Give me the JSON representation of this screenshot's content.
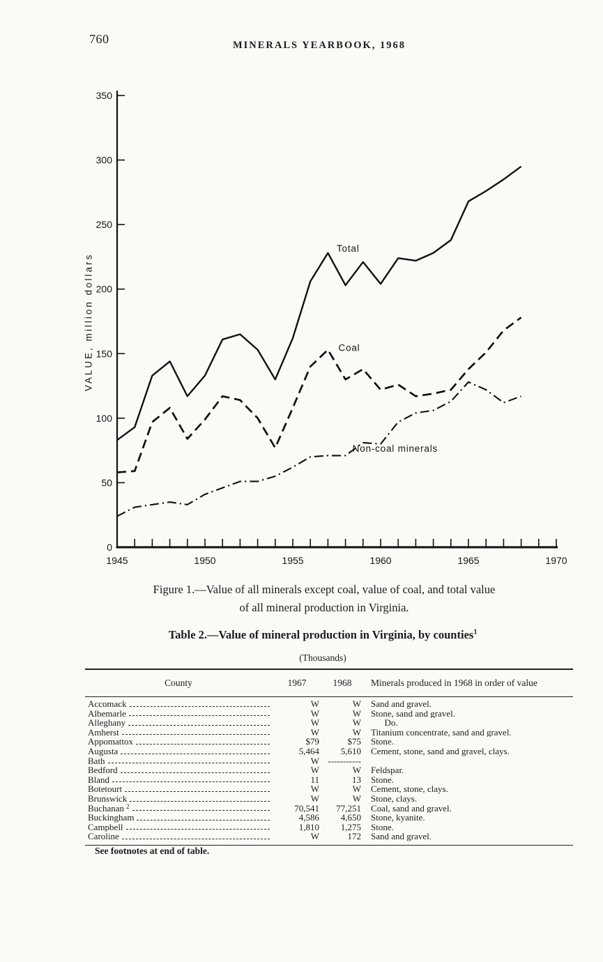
{
  "header": {
    "page_number": "760",
    "title": "MINERALS YEARBOOK, 1968"
  },
  "figure": {
    "caption_line1": "Figure 1.—Value of all minerals except coal, value of coal, and total value",
    "caption_line2": "of all mineral production in Virginia."
  },
  "chart_data": {
    "type": "line",
    "title": "",
    "xlabel": "",
    "ylabel": "VALUE, million dollars",
    "xlim": [
      1945,
      1970
    ],
    "ylim": [
      0,
      350
    ],
    "grid": false,
    "x_ticks_labeled": [
      1945,
      1950,
      1955,
      1960,
      1965,
      1970
    ],
    "y_ticks": [
      0,
      50,
      100,
      150,
      200,
      250,
      300,
      350
    ],
    "x": [
      1945,
      1946,
      1947,
      1948,
      1949,
      1950,
      1951,
      1952,
      1953,
      1954,
      1955,
      1956,
      1957,
      1958,
      1959,
      1960,
      1961,
      1962,
      1963,
      1964,
      1965,
      1966,
      1967,
      1968
    ],
    "series": [
      {
        "name": "Total",
        "style": "solid",
        "values": [
          83,
          93,
          133,
          144,
          117,
          133,
          161,
          165,
          153,
          130,
          162,
          206,
          228,
          203,
          221,
          204,
          224,
          222,
          228,
          238,
          268,
          276,
          285,
          295
        ]
      },
      {
        "name": "Coal",
        "style": "dashed",
        "values": [
          58,
          59,
          97,
          108,
          84,
          99,
          117,
          114,
          100,
          77,
          108,
          140,
          153,
          130,
          138,
          122,
          126,
          117,
          119,
          122,
          138,
          151,
          168,
          178
        ]
      },
      {
        "name": "Non-coal minerals",
        "style": "dashdot",
        "values": [
          24,
          31,
          33,
          35,
          33,
          41,
          46,
          51,
          51,
          55,
          62,
          70,
          71,
          71,
          81,
          80,
          97,
          104,
          106,
          113,
          128,
          122,
          112,
          117
        ]
      }
    ],
    "annotations": [
      {
        "text": "Total",
        "x": 1957.5,
        "y": 229
      },
      {
        "text": "Coal",
        "x": 1957.6,
        "y": 152
      },
      {
        "text": "Non-coal minerals",
        "x": 1958.4,
        "y": 74
      }
    ],
    "legend_position": "inline-labels"
  },
  "table": {
    "title": "Table 2.—Value of mineral production in Virginia, by counties",
    "title_sup": "1",
    "subtitle": "(Thousands)",
    "columns": [
      "County",
      "1967",
      "1968",
      "Minerals produced in 1968 in order of value"
    ],
    "rows": [
      {
        "county": "Accomack",
        "sup": "",
        "v1967": "W",
        "v1968": "W",
        "minerals": "Sand and gravel."
      },
      {
        "county": "Albemarle",
        "sup": "",
        "v1967": "W",
        "v1968": "W",
        "minerals": "Stone, sand and gravel."
      },
      {
        "county": "Alleghany",
        "sup": "",
        "v1967": "W",
        "v1968": "W",
        "minerals": "      Do."
      },
      {
        "county": "Amherst",
        "sup": "",
        "v1967": "W",
        "v1968": "W",
        "minerals": "Titanium concentrate, sand and gravel."
      },
      {
        "county": "Appomattox",
        "sup": "",
        "v1967": "$79",
        "v1968": "$75",
        "minerals": "Stone."
      },
      {
        "county": "Augusta",
        "sup": "",
        "v1967": "5,464",
        "v1968": "5,610",
        "minerals": "Cement, stone, sand and gravel, clays."
      },
      {
        "county": "Bath",
        "sup": "",
        "v1967": "W",
        "v1968": "-----------",
        "minerals": ""
      },
      {
        "county": "Bedford",
        "sup": "",
        "v1967": "W",
        "v1968": "W",
        "minerals": "Feldspar."
      },
      {
        "county": "Bland",
        "sup": "",
        "v1967": "11",
        "v1968": "13",
        "minerals": "Stone."
      },
      {
        "county": "Botetourt",
        "sup": "",
        "v1967": "W",
        "v1968": "W",
        "minerals": "Cement, stone, clays."
      },
      {
        "county": "Brunswick",
        "sup": "",
        "v1967": "W",
        "v1968": "W",
        "minerals": "Stone, clays."
      },
      {
        "county": "Buchanan",
        "sup": "2",
        "v1967": "70,541",
        "v1968": "77,251",
        "minerals": "Coal, sand and gravel."
      },
      {
        "county": "Buckingham",
        "sup": "",
        "v1967": "4,586",
        "v1968": "4,650",
        "minerals": "Stone, kyanite."
      },
      {
        "county": "Campbell",
        "sup": "",
        "v1967": "1,810",
        "v1968": "1,275",
        "minerals": "Stone."
      },
      {
        "county": "Caroline",
        "sup": "",
        "v1967": "W",
        "v1968": "172",
        "minerals": "Sand and gravel."
      }
    ],
    "footnote": "See footnotes at end of table."
  }
}
